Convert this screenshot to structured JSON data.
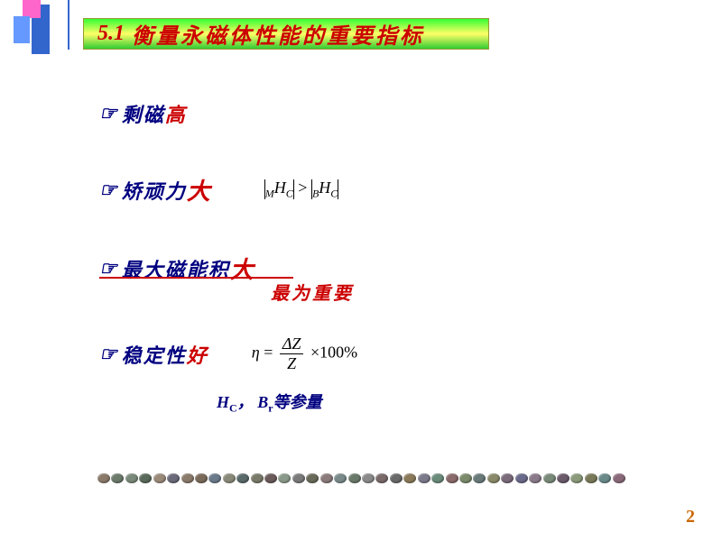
{
  "title": {
    "num": "5.1",
    "text": "衡量永磁体性能的重要指标"
  },
  "bullet_symbol": "☞",
  "items": [
    {
      "label": "剩磁",
      "em": "高"
    },
    {
      "label": "矫顽力",
      "em": "大"
    },
    {
      "label": "最大磁能积",
      "em": "大"
    },
    {
      "label": "稳定性",
      "em": "好"
    }
  ],
  "important_note": "最为重要",
  "formula1": {
    "left_pre": "M",
    "left_H": "H",
    "left_sub": "C",
    "op": ">",
    "right_pre": "B",
    "right_H": "H",
    "right_sub": "C"
  },
  "formula2": {
    "eta": "η",
    "eq": "=",
    "num_top": "ΔZ",
    "num_bot": "Z",
    "times": "×100%"
  },
  "params": {
    "hc": "H",
    "hc_sub": "C",
    "sep": "，",
    "br": "B",
    "br_sub": "r",
    "suffix": "等参量"
  },
  "page": "2",
  "stone_colors": [
    "#8a7a6a",
    "#6b7a6b",
    "#7a8a7a",
    "#5a6a5a",
    "#9a8a7a",
    "#6a6a7a",
    "#8a7a6a",
    "#7a6a5a",
    "#6a7a8a",
    "#8a8a7a",
    "#5a6a6a",
    "#7a7a6a",
    "#6a5a5a",
    "#8a9a8a",
    "#7a7a7a",
    "#6a6a5a",
    "#8a7a7a",
    "#7a8a8a",
    "#6a7a6a",
    "#8a8a8a",
    "#7a6a6a",
    "#6a6a6a",
    "#8a7a5a",
    "#7a7a8a",
    "#6a8a7a",
    "#8a6a6a",
    "#7a8a6a",
    "#6a7a7a",
    "#8a8a6a",
    "#7a6a7a",
    "#6a6a8a",
    "#8a7a8a",
    "#7a8a7a",
    "#6a5a6a",
    "#8a9a7a",
    "#7a7a5a",
    "#6a8a8a",
    "#8a6a7a"
  ]
}
